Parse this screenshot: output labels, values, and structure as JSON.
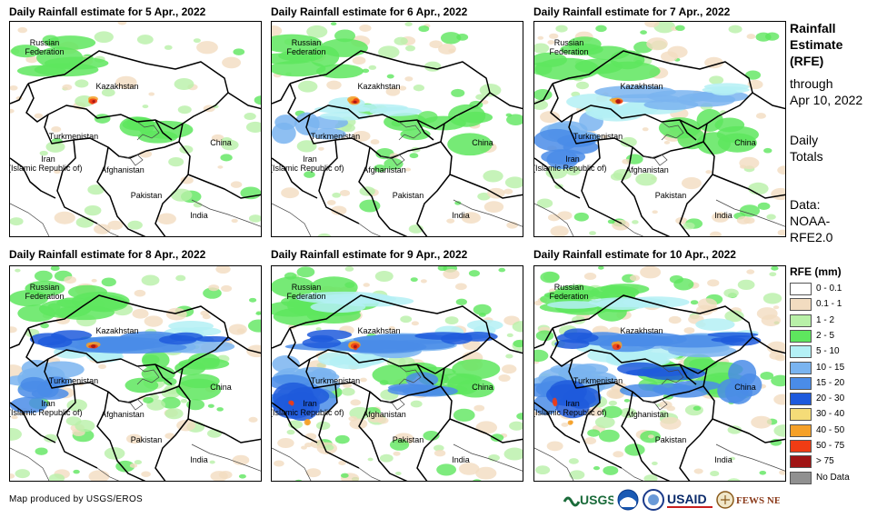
{
  "panels": [
    {
      "title": "Daily Rainfall estimate for 5 Apr., 2022",
      "intensity": 0
    },
    {
      "title": "Daily Rainfall estimate for 6 Apr., 2022",
      "intensity": 1
    },
    {
      "title": "Daily Rainfall estimate for 7 Apr., 2022",
      "intensity": 2
    },
    {
      "title": "Daily Rainfall estimate for 8 Apr., 2022",
      "intensity": 3
    },
    {
      "title": "Daily Rainfall estimate for 9 Apr., 2022",
      "intensity": 4
    },
    {
      "title": "Daily Rainfall estimate for 10 Apr., 2022",
      "intensity": 5
    }
  ],
  "map_labels": {
    "russia_1": "Russian",
    "russia_2": "Federation",
    "kazakhstan": "Kazakhstan",
    "turkmenistan": "Turkmenistan",
    "iran_1": "Iran",
    "iran_2": "(Islamic Republic of)",
    "afghanistan": "Afghanistan",
    "pakistan": "Pakistan",
    "china": "China",
    "india": "India"
  },
  "side_panel": {
    "heading_1": "Rainfall",
    "heading_2": "Estimate",
    "heading_3": "(RFE)",
    "through_1": "through",
    "through_2": "Apr 10, 2022",
    "totals_1": "Daily",
    "totals_2": "Totals",
    "data_1": "Data:",
    "data_2": "NOAA-",
    "data_3": "RFE2.0"
  },
  "legend": {
    "title": "RFE (mm)",
    "items": [
      {
        "label": "0 - 0.1",
        "color": "#ffffff"
      },
      {
        "label": "0.1 - 1",
        "color": "#f2dcc0"
      },
      {
        "label": "1 - 2",
        "color": "#b8f0a8"
      },
      {
        "label": "2 - 5",
        "color": "#5ee65e"
      },
      {
        "label": "5 - 10",
        "color": "#b4f0f5"
      },
      {
        "label": "10 - 15",
        "color": "#7ab4f0"
      },
      {
        "label": "15 - 20",
        "color": "#4a8ce8"
      },
      {
        "label": "20 - 30",
        "color": "#1e5adc"
      },
      {
        "label": "30 - 40",
        "color": "#f5dc78"
      },
      {
        "label": "40 - 50",
        "color": "#f5a028"
      },
      {
        "label": "50 - 75",
        "color": "#f03c14"
      },
      {
        "label": "> 75",
        "color": "#a01414"
      },
      {
        "label": "No Data",
        "color": "#909090"
      }
    ]
  },
  "credit": "Map produced by USGS/EROS",
  "logos": {
    "usgs": "USGS",
    "usaid": "USAID",
    "fewsnet": "FEWS NET"
  }
}
